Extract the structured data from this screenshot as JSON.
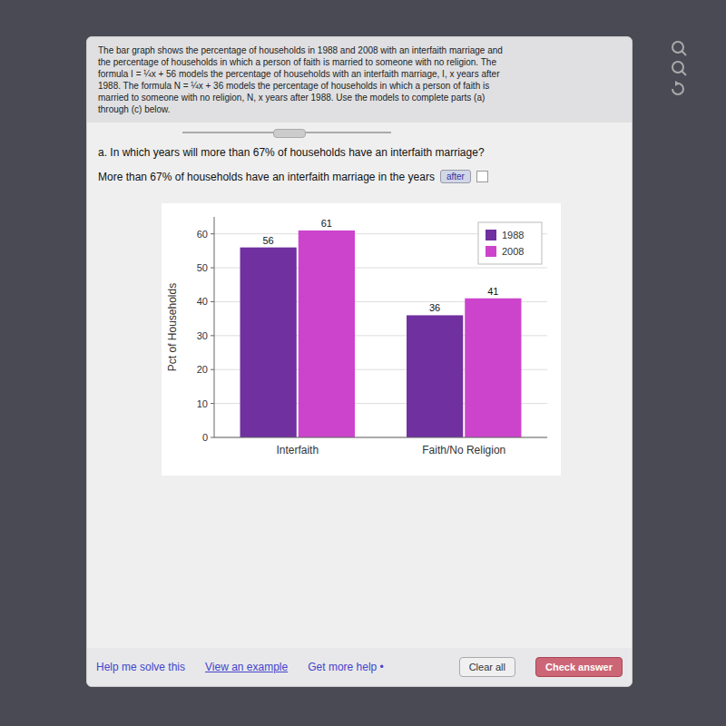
{
  "chart_data": {
    "type": "bar",
    "categories": [
      "Interfaith",
      "Faith/No Religion"
    ],
    "series": [
      {
        "name": "1988",
        "color": "#7030A0",
        "values": [
          56,
          36
        ]
      },
      {
        "name": "2008",
        "color": "#CC44CC",
        "values": [
          61,
          41
        ]
      }
    ],
    "ylabel": "Pct of Households",
    "ylim": [
      0,
      65
    ],
    "yticks": [
      0,
      10,
      20,
      30,
      40,
      50,
      60
    ],
    "grid": true,
    "legend": "upper right",
    "data_labels": true
  },
  "page": {
    "problem": [
      "The bar graph shows the percentage of households in 1988 and 2008 with an interfaith marriage and",
      "the percentage of households in which a person of faith is married to someone with no religion.  The",
      "formula I = ¼x + 56 models the percentage of households with an interfaith marriage, I, x years after",
      "1988. The formula N = ¼x + 36 models the percentage of households in which a person of faith is",
      "married to someone with no religion, N, x years after 1988. Use the models to complete parts (a)",
      "through (c) below."
    ],
    "question": "a. In which years will more than 67% of households have an interfaith marriage?",
    "answer_prompt": "More than 67% of households have an interfaith marriage in the years",
    "answer_choice": "after",
    "links": [
      "Help me solve this",
      "View an example",
      "Get more help •"
    ],
    "buttons": [
      "Clear all",
      "Check answer"
    ]
  }
}
